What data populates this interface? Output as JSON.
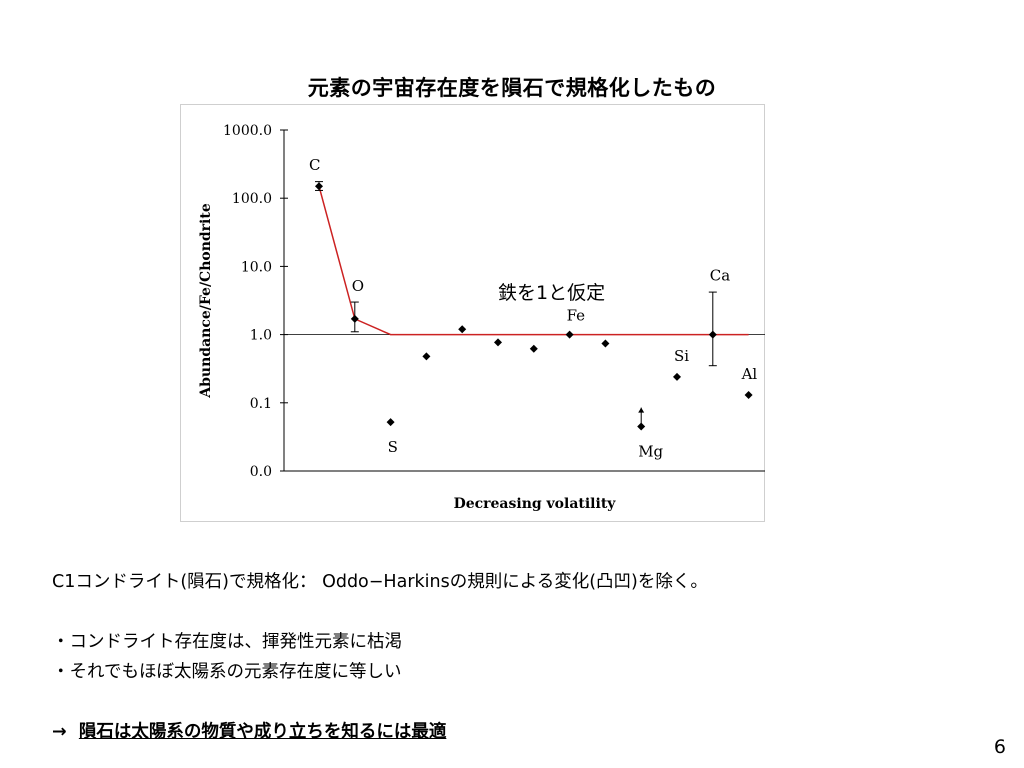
{
  "slide": {
    "title": "元素の宇宙存在度を隕石で規格化したもの",
    "caption": "C1コンドライト(隕石)で規格化： Oddo−Harkinsの規則による変化(凸凹)を除く。",
    "bullets": [
      "・コンドライト存在度は、揮発性元素に枯渇",
      "・それでもほぼ太陽系の元素存在度に等しい"
    ],
    "conclusion_arrow": "→",
    "conclusion": "隕石は太陽系の物質や成り立ちを知るには最適",
    "page_number": "6"
  },
  "chart_data": {
    "type": "scatter",
    "title": "",
    "xlabel": "Decreasing volatility",
    "ylabel": "Abundance/Fe/Chondrite",
    "yscale": "log",
    "ylim": [
      0.01,
      1000
    ],
    "yticks": [
      0.01,
      0.1,
      1,
      10,
      100,
      1000
    ],
    "ytick_labels": [
      "0.0",
      "0.1",
      "1.0",
      "10.0",
      "100.0",
      "1000.0"
    ],
    "grid": false,
    "reference_line": 1.0,
    "annotation": "鉄を1と仮定",
    "points": [
      {
        "x": 1,
        "y": 150,
        "label": "C",
        "err": [
          130,
          175
        ]
      },
      {
        "x": 2,
        "y": 1.7,
        "label": "O",
        "err": [
          1.1,
          3.0
        ]
      },
      {
        "x": 3,
        "y": 0.052,
        "label": "S"
      },
      {
        "x": 4,
        "y": 0.48
      },
      {
        "x": 5,
        "y": 1.2
      },
      {
        "x": 6,
        "y": 0.77
      },
      {
        "x": 7,
        "y": 0.62
      },
      {
        "x": 8,
        "y": 1.0,
        "label": "Fe"
      },
      {
        "x": 9,
        "y": 0.74
      },
      {
        "x": 10,
        "y": 0.045,
        "label": "Mg",
        "arrow_up_to": 0.085
      },
      {
        "x": 11,
        "y": 0.24,
        "label": "Si"
      },
      {
        "x": 12,
        "y": 1.0,
        "label": "Ca",
        "err": [
          0.35,
          4.2
        ]
      },
      {
        "x": 13,
        "y": 0.13,
        "label": "Al"
      }
    ],
    "series": [
      {
        "type": "line",
        "color": "#cc2222",
        "points": [
          [
            1,
            150
          ],
          [
            2,
            1.7
          ],
          [
            3,
            1.0
          ],
          [
            13,
            1.0
          ]
        ]
      }
    ]
  }
}
